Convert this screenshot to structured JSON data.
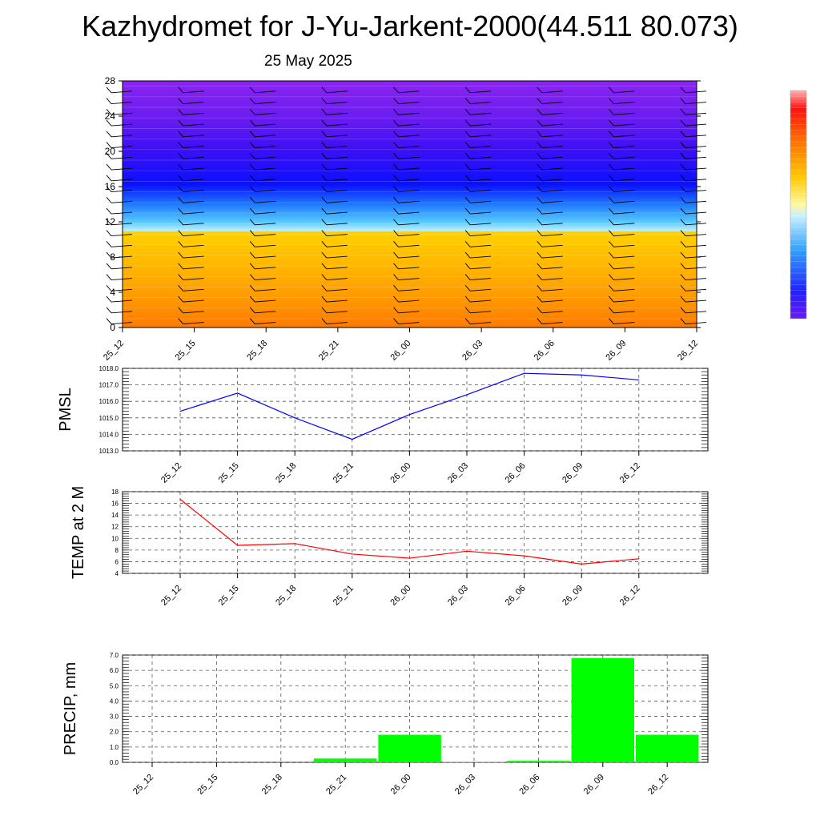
{
  "header": {
    "title": "Kazhydromet for J-Yu-Jarkent-2000(44.511 80.073)",
    "date": "25 May 2025"
  },
  "colors": {
    "pressure_line": "#0000ff",
    "temperature_line": "#ff0000",
    "precip_bar": "#00ff00",
    "grid": "#555555"
  },
  "chart_data": [
    {
      "type": "heatmap",
      "name": "vertical-profile",
      "categories": [
        "25_12",
        "25_15",
        "25_18",
        "25_21",
        "26_00",
        "26_03",
        "26_06",
        "26_09",
        "26_12"
      ],
      "yticks": [
        "0",
        "4",
        "8",
        "12",
        "16",
        "20",
        "24",
        "28"
      ],
      "ylim": [
        0,
        28
      ],
      "colormap": "temperature: orange at 0-11, cyan/blue 11-18, dark blue 18-23, violet 23-28",
      "overlay": "wind barbs at every time step"
    },
    {
      "type": "line",
      "name": "pmsl",
      "ylabel": "PMSL",
      "categories": [
        "25_12",
        "25_15",
        "25_18",
        "25_21",
        "26_00",
        "26_03",
        "26_06",
        "26_09",
        "26_12"
      ],
      "values": [
        1015.4,
        1016.5,
        1015.0,
        1013.7,
        1015.2,
        1016.4,
        1017.7,
        1017.6,
        1017.3
      ],
      "ylim": [
        1013.0,
        1018.0
      ],
      "yticks": [
        "1013.0",
        "1014.0",
        "1015.0",
        "1016.0",
        "1017.0",
        "1018.0"
      ]
    },
    {
      "type": "line",
      "name": "temp",
      "ylabel": "TEMP at 2 M",
      "categories": [
        "25_12",
        "25_15",
        "25_18",
        "25_21",
        "26_00",
        "26_03",
        "26_06",
        "26_09",
        "26_12"
      ],
      "values": [
        16.7,
        8.8,
        9.1,
        7.3,
        6.6,
        7.8,
        7.0,
        5.6,
        6.5
      ],
      "ylim": [
        4,
        18
      ],
      "yticks": [
        "4",
        "6",
        "8",
        "10",
        "12",
        "14",
        "16",
        "18"
      ]
    },
    {
      "type": "bar",
      "name": "precip",
      "ylabel": "PRECIP, mm",
      "categories": [
        "25_12",
        "25_15",
        "25_18",
        "25_21",
        "26_00",
        "26_03",
        "26_06",
        "26_09",
        "26_12"
      ],
      "values": [
        0.0,
        0.0,
        0.0,
        0.25,
        1.8,
        0.02,
        0.1,
        6.8,
        1.8
      ],
      "ylim": [
        0.0,
        7.0
      ],
      "yticks": [
        "0.0",
        "1.0",
        "2.0",
        "3.0",
        "4.0",
        "5.0",
        "6.0",
        "7.0"
      ]
    }
  ]
}
